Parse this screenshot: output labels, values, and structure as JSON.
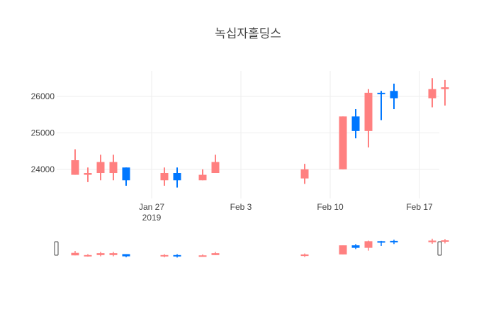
{
  "chart_data": {
    "type": "candlestick",
    "title": "녹십자홀딩스",
    "colors": {
      "increasing": "#0077ff",
      "decreasing": "#ff8080",
      "grid": "#eeeeee"
    },
    "ylim": [
      23200,
      26700
    ],
    "yticks": [
      {
        "value": 24000,
        "label": "24000"
      },
      {
        "value": 25000,
        "label": "25000"
      },
      {
        "value": 26000,
        "label": "26000"
      }
    ],
    "xlim": [
      "2019-01-20",
      "2019-02-19"
    ],
    "xticks": [
      {
        "date": "2019-01-27",
        "label": "Jan 27",
        "sublabel": "2019"
      },
      {
        "date": "2019-02-03",
        "label": "Feb 3",
        "sublabel": ""
      },
      {
        "date": "2019-02-10",
        "label": "Feb 10",
        "sublabel": ""
      },
      {
        "date": "2019-02-17",
        "label": "Feb 17",
        "sublabel": ""
      }
    ],
    "candles": [
      {
        "date": "2019-01-21",
        "open": 24250,
        "high": 24550,
        "low": 23850,
        "close": 23850
      },
      {
        "date": "2019-01-22",
        "open": 23900,
        "high": 24050,
        "low": 23650,
        "close": 23850
      },
      {
        "date": "2019-01-23",
        "open": 24200,
        "high": 24400,
        "low": 23700,
        "close": 23900
      },
      {
        "date": "2019-01-24",
        "open": 24200,
        "high": 24400,
        "low": 23700,
        "close": 23900
      },
      {
        "date": "2019-01-25",
        "open": 23700,
        "high": 24050,
        "low": 23550,
        "close": 24050
      },
      {
        "date": "2019-01-28",
        "open": 23900,
        "high": 24050,
        "low": 23550,
        "close": 23700
      },
      {
        "date": "2019-01-29",
        "open": 23700,
        "high": 24050,
        "low": 23500,
        "close": 23900
      },
      {
        "date": "2019-01-31",
        "open": 23850,
        "high": 24000,
        "low": 23700,
        "close": 23700
      },
      {
        "date": "2019-02-01",
        "open": 24200,
        "high": 24400,
        "low": 23900,
        "close": 23900
      },
      {
        "date": "2019-02-08",
        "open": 24000,
        "high": 24150,
        "low": 23600,
        "close": 23750
      },
      {
        "date": "2019-02-11",
        "open": 25450,
        "high": 25450,
        "low": 24000,
        "close": 24000
      },
      {
        "date": "2019-02-12",
        "open": 25050,
        "high": 25650,
        "low": 24850,
        "close": 25450
      },
      {
        "date": "2019-02-13",
        "open": 26100,
        "high": 26200,
        "low": 24600,
        "close": 25050
      },
      {
        "date": "2019-02-14",
        "open": 26100,
        "high": 26150,
        "low": 25350,
        "close": 26100
      },
      {
        "date": "2019-02-15",
        "open": 25950,
        "high": 26350,
        "low": 25650,
        "close": 26150
      },
      {
        "date": "2019-02-18",
        "open": 26200,
        "high": 26500,
        "low": 25700,
        "close": 25950
      },
      {
        "date": "2019-02-19",
        "open": 26250,
        "high": 26450,
        "low": 25750,
        "close": 26200
      }
    ]
  }
}
